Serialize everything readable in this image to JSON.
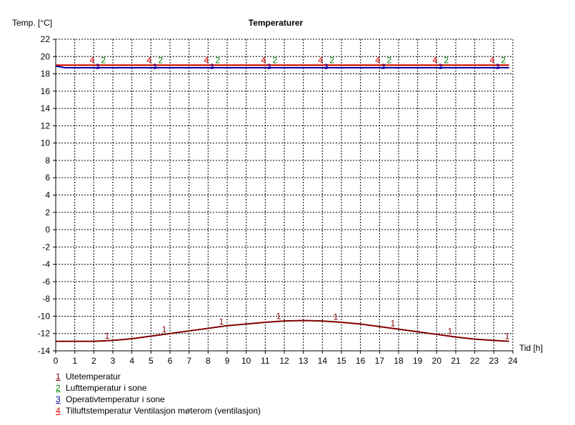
{
  "chart_data": {
    "type": "line",
    "title": "Temperaturer",
    "ylabel": "Temp. [°C]",
    "xlabel": "Tid [h]",
    "xlim": [
      0,
      24
    ],
    "ylim": [
      -14,
      22
    ],
    "xticks": [
      0,
      1,
      2,
      3,
      4,
      5,
      6,
      7,
      8,
      9,
      10,
      11,
      12,
      13,
      14,
      15,
      16,
      17,
      18,
      19,
      20,
      21,
      22,
      23,
      24
    ],
    "yticks": [
      22,
      20,
      18,
      16,
      14,
      12,
      10,
      8,
      6,
      4,
      2,
      0,
      -2,
      -4,
      -6,
      -8,
      -10,
      -12,
      -14
    ],
    "grid": true,
    "series": [
      {
        "id": "1",
        "name": "Utetemperatur",
        "color": "#800000",
        "x": [
          0,
          1,
          2,
          3,
          4,
          5,
          6,
          7,
          8,
          9,
          10,
          11,
          12,
          13,
          14,
          15,
          16,
          17,
          18,
          19,
          20,
          21,
          22,
          23,
          23.8
        ],
        "y": [
          -12.9,
          -12.9,
          -12.9,
          -12.8,
          -12.6,
          -12.3,
          -12.0,
          -11.7,
          -11.4,
          -11.1,
          -10.9,
          -10.7,
          -10.55,
          -10.5,
          -10.55,
          -10.7,
          -10.9,
          -11.2,
          -11.5,
          -11.8,
          -12.1,
          -12.4,
          -12.65,
          -12.8,
          -12.9
        ],
        "marker_x": [
          2.7,
          5.7,
          8.7,
          11.7,
          14.7,
          17.7,
          20.7,
          23.7
        ]
      },
      {
        "id": "2",
        "name": "Lufttemperatur i sone",
        "color": "#008000",
        "x": [
          0,
          23.8
        ],
        "y": [
          19.0,
          19.0
        ],
        "marker_x": [
          2.5,
          5.5,
          8.5,
          11.5,
          14.5,
          17.5,
          20.5,
          23.5
        ]
      },
      {
        "id": "3",
        "name": "Operativtemperatur i sone",
        "color": "#0000a0",
        "x": [
          0,
          0.5,
          23.8
        ],
        "y": [
          18.9,
          18.7,
          18.7
        ],
        "marker_x": [
          2.2,
          5.2,
          8.2,
          11.2,
          14.2,
          17.2,
          20.2,
          23.2
        ]
      },
      {
        "id": "4",
        "name": "Tilluftstemperatur Ventilasjon møterom (ventilasjon)",
        "color": "#e00000",
        "x": [
          0,
          23.8
        ],
        "y": [
          19.0,
          19.0
        ],
        "marker_x": [
          1.9,
          4.9,
          7.9,
          10.9,
          13.9,
          16.9,
          19.9,
          22.9
        ]
      }
    ]
  }
}
